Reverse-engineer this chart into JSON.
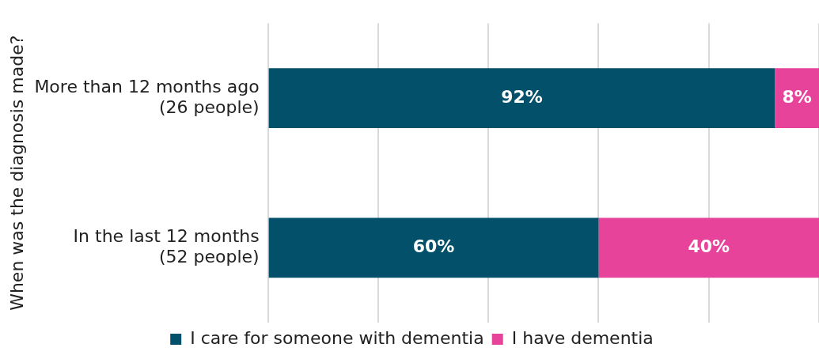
{
  "chart_data": {
    "type": "bar",
    "orientation": "horizontal",
    "stacked": true,
    "ylabel": "When was the diagnosis made?",
    "categories": [
      "More than 12 months ago\n(26 people)",
      "In the last 12 months\n(52 people)"
    ],
    "series": [
      {
        "name": "I care for someone with dementia",
        "color": "#03506a",
        "values": [
          92,
          60
        ],
        "value_labels": [
          "92%",
          "60%"
        ]
      },
      {
        "name": "I have dementia",
        "color": "#e8439a",
        "values": [
          8,
          40
        ],
        "value_labels": [
          "8%",
          "40%"
        ]
      }
    ],
    "xlim": [
      0,
      100
    ],
    "xticks": [
      {
        "value": 0,
        "label": null
      },
      {
        "value": 20,
        "label": null
      },
      {
        "value": 40,
        "label": null
      },
      {
        "value": 60,
        "label": null
      },
      {
        "value": 80,
        "label": null
      },
      {
        "value": 100,
        "label": null
      }
    ],
    "tick_labels": "y",
    "grid": "x",
    "legend": "bottom"
  }
}
